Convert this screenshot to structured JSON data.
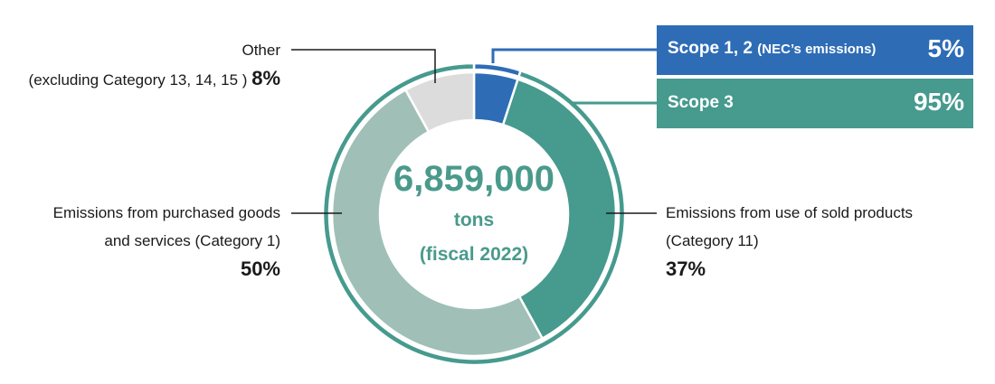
{
  "chart_data": {
    "type": "pie",
    "variant": "donut",
    "center": {
      "value": "6,859,000",
      "unit": "tons",
      "period": "(fiscal 2022)"
    },
    "inner_slices": [
      {
        "name": "Scope 1, 2",
        "value": 5,
        "color": "#2e6db6"
      },
      {
        "name": "Emissions from use of sold products (Category 11)",
        "value": 37,
        "color": "#469a8e"
      },
      {
        "name": "Emissions from purchased goods and services (Category 1)",
        "value": 50,
        "color": "#9fbfb7"
      },
      {
        "name": "Other (excluding Category 13, 14, 15)",
        "value": 8,
        "color": "#dcdcdc"
      }
    ],
    "outer_ring": [
      {
        "name": "Scope 1, 2",
        "value": 5,
        "color": "#2e6db6"
      },
      {
        "name": "Scope 3",
        "value": 95,
        "color": "#469a8e"
      }
    ]
  },
  "legend": {
    "scope12": {
      "title": "Scope 1, 2",
      "note": "(NEC’s emissions)",
      "pct": "5%",
      "color": "#2e6db6"
    },
    "scope3": {
      "title": "Scope 3",
      "pct": "95%",
      "color": "#469a8e"
    }
  },
  "labels": {
    "other": {
      "line1": "Other",
      "line2": "(excluding Category 13, 14, 15 )",
      "pct": "8%"
    },
    "purchased": {
      "line1": "Emissions from purchased goods",
      "line2": "and services (Category 1)",
      "pct": "50%"
    },
    "sold": {
      "line1": "Emissions from use of sold products",
      "line2": "(Category 11)",
      "pct": "37%"
    }
  }
}
